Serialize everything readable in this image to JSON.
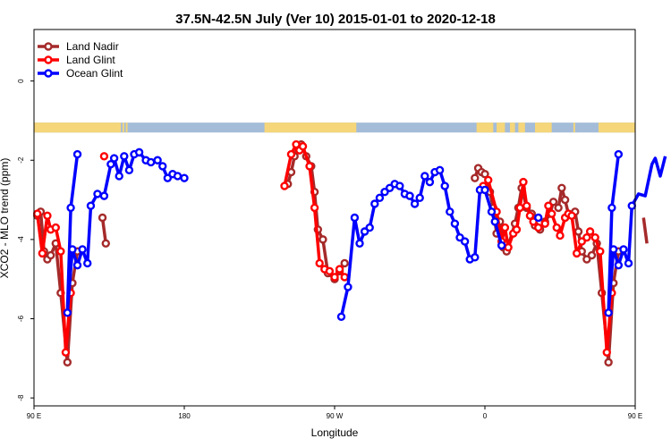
{
  "chart_data": {
    "type": "line",
    "title": "37.5N-42.5N July (Ver 10)   2015-01-01 to 2020-12-18",
    "xlabel": "Longitude",
    "ylabel": "XCO2 - MLO trend (ppm)",
    "xlim": [
      90,
      450
    ],
    "ylim": [
      -8.2,
      1.3
    ],
    "xticks": [
      {
        "value": 90,
        "label": "90 E"
      },
      {
        "value": 180,
        "label": "180"
      },
      {
        "value": 270,
        "label": "90 W"
      },
      {
        "value": 360,
        "label": "0"
      },
      {
        "value": 450,
        "label": "90 E"
      },
      {
        "value": 540,
        "label": "180"
      }
    ],
    "yticks": [
      {
        "value": 0,
        "label": "0"
      },
      {
        "value": -2,
        "label": "-2"
      },
      {
        "value": -4,
        "label": "-4"
      },
      {
        "value": -6,
        "label": "-6"
      },
      {
        "value": -8,
        "label": "-8"
      }
    ],
    "legend_position": "top-left",
    "land_ocean_strip": {
      "y_top": -1.05,
      "y_bottom": -1.3,
      "ocean_color": "#a4bcd8",
      "land_color": "#f5d67a",
      "land_ranges": [
        [
          90,
          142
        ],
        [
          143,
          144
        ],
        [
          145,
          146
        ],
        [
          228,
          283
        ],
        [
          355,
          365
        ],
        [
          367,
          372
        ],
        [
          375,
          378
        ],
        [
          380,
          384
        ],
        [
          390,
          400
        ],
        [
          413,
          414
        ],
        [
          428,
          497
        ],
        [
          498,
          499
        ],
        [
          500,
          501
        ]
      ]
    },
    "series": [
      {
        "name": "Land Nadir",
        "color": "#a52a2a",
        "segments": [
          [
            [
              92,
              -3.4
            ],
            [
              94,
              -3.3
            ],
            [
              96,
              -4.3
            ],
            [
              98,
              -4.5
            ],
            [
              100,
              -4.4
            ],
            [
              103,
              -4.1
            ],
            [
              106,
              -5.35
            ],
            [
              110,
              -7.1
            ],
            [
              113,
              -5.1
            ],
            [
              116,
              -4.3
            ]
          ],
          [
            [
              131,
              -3.45
            ],
            [
              133,
              -4.1
            ]
          ],
          [
            [
              242,
              -2.6
            ],
            [
              244,
              -2.3
            ],
            [
              246,
              -1.9
            ],
            [
              248,
              -1.65
            ],
            [
              250,
              -1.6
            ],
            [
              253,
              -1.9
            ],
            [
              256,
              -2.15
            ],
            [
              258,
              -2.8
            ],
            [
              260,
              -3.75
            ],
            [
              263,
              -4.0
            ],
            [
              266,
              -4.85
            ],
            [
              270,
              -5.0
            ],
            [
              273,
              -4.8
            ],
            [
              276,
              -4.6
            ]
          ],
          [
            [
              354,
              -2.45
            ],
            [
              356,
              -2.2
            ],
            [
              358,
              -2.3
            ],
            [
              360,
              -2.35
            ],
            [
              363,
              -2.8
            ],
            [
              365,
              -3.2
            ],
            [
              367,
              -3.85
            ],
            [
              369,
              -3.55
            ],
            [
              371,
              -4.2
            ],
            [
              373,
              -4.3
            ],
            [
              378,
              -3.6
            ],
            [
              380,
              -3.2
            ],
            [
              382,
              -2.7
            ],
            [
              385,
              -3.2
            ],
            [
              388,
              -3.35
            ],
            [
              390,
              -3.65
            ],
            [
              393,
              -3.75
            ],
            [
              396,
              -3.55
            ],
            [
              399,
              -3.35
            ],
            [
              401,
              -3.05
            ],
            [
              404,
              -3.2
            ],
            [
              406,
              -2.7
            ],
            [
              408,
              -3.0
            ],
            [
              410,
              -3.35
            ],
            [
              414,
              -3.3
            ],
            [
              416,
              -3.8
            ],
            [
              418,
              -4.3
            ],
            [
              421,
              -4.5
            ],
            [
              424,
              -4.4
            ],
            [
              427,
              -4.1
            ],
            [
              430,
              -5.35
            ],
            [
              434,
              -7.1
            ],
            [
              437,
              -5.1
            ],
            [
              440,
              -4.3
            ]
          ],
          [
            [
              455,
              -3.45
            ],
            [
              457,
              -4.1
            ]
          ]
        ]
      },
      {
        "name": "Land Glint",
        "color": "#ff0000",
        "segments": [
          [
            [
              92,
              -3.35
            ],
            [
              95,
              -4.35
            ],
            [
              98,
              -3.4
            ],
            [
              100,
              -3.75
            ],
            [
              103,
              -3.7
            ],
            [
              106,
              -4.3
            ],
            [
              109,
              -6.85
            ],
            [
              112,
              -5.35
            ]
          ],
          [
            [
              132,
              -1.9
            ]
          ],
          [
            [
              240,
              -2.65
            ],
            [
              244,
              -1.85
            ],
            [
              247,
              -1.6
            ],
            [
              249,
              -1.75
            ],
            [
              251,
              -1.65
            ],
            [
              255,
              -2.15
            ],
            [
              258,
              -3.2
            ],
            [
              261,
              -4.6
            ],
            [
              264,
              -4.75
            ],
            [
              267,
              -4.8
            ],
            [
              270,
              -4.95
            ],
            [
              273,
              -4.75
            ],
            [
              276,
              -4.95
            ]
          ],
          [
            [
              359,
              -2.65
            ],
            [
              362,
              -2.5
            ],
            [
              367,
              -3.3
            ],
            [
              370,
              -4.05
            ],
            [
              372,
              -3.7
            ],
            [
              374,
              -4.2
            ],
            [
              377,
              -3.85
            ],
            [
              379,
              -3.75
            ],
            [
              381,
              -3.2
            ],
            [
              383,
              -2.55
            ],
            [
              385,
              -3.15
            ],
            [
              387,
              -3.4
            ],
            [
              389,
              -3.55
            ],
            [
              392,
              -3.7
            ],
            [
              396,
              -3.6
            ],
            [
              398,
              -3.15
            ],
            [
              400,
              -3.35
            ],
            [
              403,
              -3.7
            ],
            [
              405,
              -3.9
            ],
            [
              408,
              -3.45
            ],
            [
              410,
              -3.35
            ],
            [
              412,
              -3.4
            ],
            [
              415,
              -4.35
            ],
            [
              418,
              -4.05
            ],
            [
              421,
              -3.95
            ],
            [
              423,
              -3.8
            ],
            [
              426,
              -3.95
            ],
            [
              429,
              -4.3
            ],
            [
              433,
              -6.85
            ],
            [
              436,
              -5.35
            ]
          ],
          [
            [
              456,
              -1.9
            ]
          ]
        ]
      },
      {
        "name": "Ocean Glint",
        "color": "#0000ff",
        "segments": [
          [
            [
              116,
              -1.85
            ],
            [
              112,
              -3.2
            ],
            [
              110,
              -5.85
            ],
            [
              113,
              -4.25
            ],
            [
              116,
              -4.65
            ],
            [
              119,
              -4.25
            ],
            [
              122,
              -4.6
            ],
            [
              124,
              -3.15
            ],
            [
              128,
              -2.85
            ],
            [
              132,
              -2.9
            ],
            [
              136,
              -2.1
            ],
            [
              138,
              -1.95
            ],
            [
              141,
              -2.4
            ],
            [
              144,
              -1.9
            ],
            [
              147,
              -2.25
            ],
            [
              150,
              -1.85
            ],
            [
              153,
              -1.8
            ],
            [
              157,
              -2.0
            ],
            [
              160,
              -2.05
            ],
            [
              164,
              -2.0
            ],
            [
              167,
              -2.15
            ],
            [
              170,
              -2.45
            ],
            [
              173,
              -2.35
            ],
            [
              176,
              -2.4
            ],
            [
              180,
              -2.45
            ]
          ],
          [
            [
              274,
              -5.95
            ],
            [
              278,
              -5.2
            ],
            [
              282,
              -3.45
            ],
            [
              285,
              -4.1
            ],
            [
              288,
              -3.8
            ],
            [
              291,
              -3.7
            ],
            [
              294,
              -3.1
            ],
            [
              297,
              -2.95
            ],
            [
              300,
              -2.8
            ],
            [
              303,
              -2.7
            ],
            [
              306,
              -2.6
            ],
            [
              309,
              -2.65
            ],
            [
              312,
              -2.85
            ],
            [
              315,
              -2.9
            ],
            [
              318,
              -3.1
            ],
            [
              321,
              -2.95
            ],
            [
              324,
              -2.4
            ],
            [
              327,
              -2.55
            ],
            [
              330,
              -2.3
            ],
            [
              333,
              -2.25
            ],
            [
              336,
              -2.65
            ],
            [
              339,
              -3.3
            ],
            [
              342,
              -3.6
            ],
            [
              345,
              -3.95
            ],
            [
              348,
              -4.05
            ],
            [
              351,
              -4.5
            ],
            [
              354,
              -4.45
            ],
            [
              357,
              -2.75
            ],
            [
              360,
              -2.75
            ],
            [
              364,
              -3.3
            ],
            [
              366,
              -3.55
            ],
            [
              370,
              -4.15
            ]
          ],
          [
            [
              392,
              -3.45
            ]
          ],
          [
            [
              440,
              -1.85
            ],
            [
              436,
              -3.2
            ],
            [
              434,
              -5.85
            ],
            [
              437,
              -4.25
            ],
            [
              440,
              -4.65
            ],
            [
              443,
              -4.25
            ],
            [
              446,
              -4.6
            ],
            [
              448,
              -3.15
            ],
            [
              452,
              -2.85
            ],
            [
              456,
              -2.9
            ],
            [
              460,
              -2.1
            ],
            [
              462,
              -1.95
            ],
            [
              465,
              -2.4
            ],
            [
              468,
              -1.9
            ]
          ]
        ]
      }
    ]
  }
}
